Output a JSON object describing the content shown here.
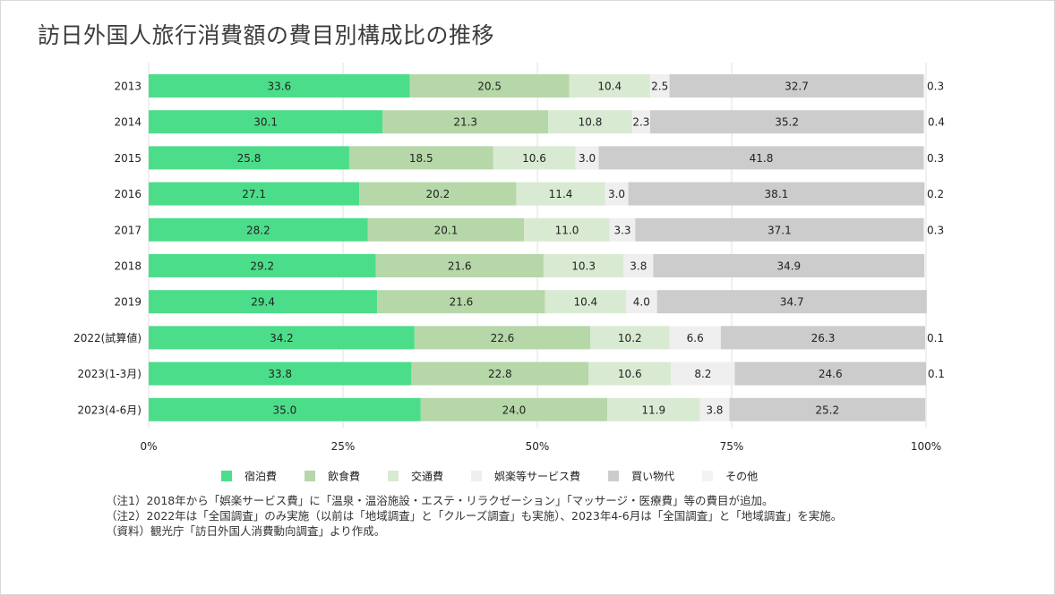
{
  "title": "訪日外国人旅行消費額の費目別構成比の推移",
  "chart_data": {
    "type": "bar",
    "orientation": "horizontal",
    "stacked": true,
    "title": "訪日外国人旅行消費額の費目別構成比の推移",
    "categories": [
      "2013",
      "2014",
      "2015",
      "2016",
      "2017",
      "2018",
      "2019",
      "2022(試算値)",
      "2023(1-3月)",
      "2023(4-6月)"
    ],
    "xlim": [
      0,
      100
    ],
    "x_ticks": [
      "0%",
      "25%",
      "50%",
      "75%",
      "100%"
    ],
    "grid": true,
    "legend_position": "bottom",
    "series": [
      {
        "name": "宿泊費",
        "color": "#4cdd8a",
        "values": [
          33.6,
          30.1,
          25.8,
          27.1,
          28.2,
          29.2,
          29.4,
          34.2,
          33.8,
          35.0
        ],
        "labels": [
          "33.6",
          "30.1",
          "25.8",
          "27.1",
          "28.2",
          "29.2",
          "29.4",
          "34.2",
          "33.8",
          "35.0"
        ]
      },
      {
        "name": "飲食費",
        "color": "#b6d7a8",
        "values": [
          20.5,
          21.3,
          18.5,
          20.2,
          20.1,
          21.6,
          21.6,
          22.6,
          22.8,
          24.0
        ],
        "labels": [
          "20.5",
          "21.3",
          "18.5",
          "20.2",
          "20.1",
          "21.6",
          "21.6",
          "22.6",
          "22.8",
          "24.0"
        ]
      },
      {
        "name": "交通費",
        "color": "#d9ead3",
        "values": [
          10.4,
          10.8,
          10.6,
          11.4,
          11.0,
          10.3,
          10.4,
          10.2,
          10.6,
          11.9
        ],
        "labels": [
          "10.4",
          "10.8",
          "10.6",
          "11.4",
          "11.0",
          "10.3",
          "10.4",
          "10.2",
          "10.6",
          "11.9"
        ]
      },
      {
        "name": "娯楽等サービス費",
        "color": "#efefef",
        "values": [
          2.5,
          2.3,
          3.0,
          3.0,
          3.3,
          3.8,
          4.0,
          6.6,
          8.2,
          3.8
        ],
        "labels": [
          "2.5",
          "2.3",
          "3.0",
          "3.0",
          "3.3",
          "3.8",
          "4.0",
          "6.6",
          "8.2",
          "3.8"
        ]
      },
      {
        "name": "買い物代",
        "color": "#cccccc",
        "values": [
          32.7,
          35.2,
          41.8,
          38.1,
          37.1,
          34.9,
          34.7,
          26.3,
          24.6,
          25.2
        ],
        "labels": [
          "32.7",
          "35.2",
          "41.8",
          "38.1",
          "37.1",
          "34.9",
          "34.7",
          "26.3",
          "24.6",
          "25.2"
        ]
      },
      {
        "name": "その他",
        "color": "#f3f3f3",
        "values": [
          0.3,
          0.4,
          0.3,
          0.2,
          0.3,
          0,
          0,
          0.1,
          0.1,
          0
        ],
        "labels": [
          "0.3",
          "0.4",
          "0.3",
          "0.2",
          "0.3",
          "",
          "",
          "0.1",
          "0.1",
          ""
        ]
      }
    ]
  },
  "notes": [
    "（注1）2018年から「娯楽サービス費」に「温泉・温浴施設・エステ・リラクゼーション」「マッサージ・医療費」等の費目が追加。",
    "（注2）2022年は「全国調査」のみ実施（以前は「地域調査」と「クルーズ調査」も実施）、2023年4-6月は「全国調査」と「地域調査」を実施。",
    "（資料）観光庁「訪日外国人消費動向調査」より作成。"
  ]
}
